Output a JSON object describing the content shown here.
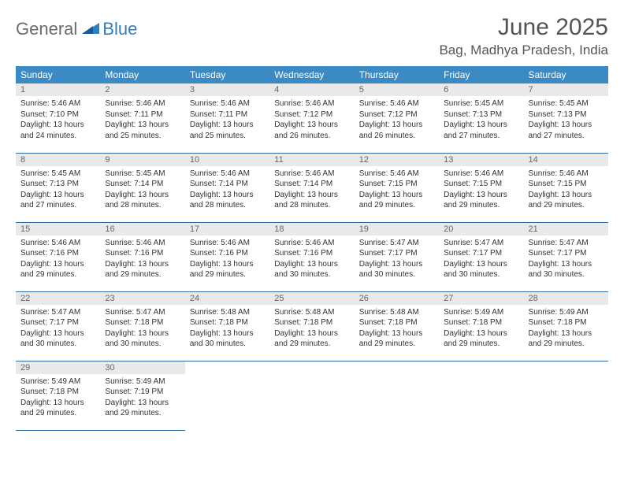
{
  "logo": {
    "text1": "General",
    "text2": "Blue"
  },
  "title": "June 2025",
  "location": "Bag, Madhya Pradesh, India",
  "colors": {
    "header_bg": "#3b8ac4",
    "header_text": "#ffffff",
    "daynum_bg": "#e9e9e9",
    "border": "#2f6b9e"
  },
  "weekdays": [
    "Sunday",
    "Monday",
    "Tuesday",
    "Wednesday",
    "Thursday",
    "Friday",
    "Saturday"
  ],
  "weeks": [
    [
      {
        "n": "1",
        "sr": "5:46 AM",
        "ss": "7:10 PM",
        "dl": "13 hours and 24 minutes."
      },
      {
        "n": "2",
        "sr": "5:46 AM",
        "ss": "7:11 PM",
        "dl": "13 hours and 25 minutes."
      },
      {
        "n": "3",
        "sr": "5:46 AM",
        "ss": "7:11 PM",
        "dl": "13 hours and 25 minutes."
      },
      {
        "n": "4",
        "sr": "5:46 AM",
        "ss": "7:12 PM",
        "dl": "13 hours and 26 minutes."
      },
      {
        "n": "5",
        "sr": "5:46 AM",
        "ss": "7:12 PM",
        "dl": "13 hours and 26 minutes."
      },
      {
        "n": "6",
        "sr": "5:45 AM",
        "ss": "7:13 PM",
        "dl": "13 hours and 27 minutes."
      },
      {
        "n": "7",
        "sr": "5:45 AM",
        "ss": "7:13 PM",
        "dl": "13 hours and 27 minutes."
      }
    ],
    [
      {
        "n": "8",
        "sr": "5:45 AM",
        "ss": "7:13 PM",
        "dl": "13 hours and 27 minutes."
      },
      {
        "n": "9",
        "sr": "5:45 AM",
        "ss": "7:14 PM",
        "dl": "13 hours and 28 minutes."
      },
      {
        "n": "10",
        "sr": "5:46 AM",
        "ss": "7:14 PM",
        "dl": "13 hours and 28 minutes."
      },
      {
        "n": "11",
        "sr": "5:46 AM",
        "ss": "7:14 PM",
        "dl": "13 hours and 28 minutes."
      },
      {
        "n": "12",
        "sr": "5:46 AM",
        "ss": "7:15 PM",
        "dl": "13 hours and 29 minutes."
      },
      {
        "n": "13",
        "sr": "5:46 AM",
        "ss": "7:15 PM",
        "dl": "13 hours and 29 minutes."
      },
      {
        "n": "14",
        "sr": "5:46 AM",
        "ss": "7:15 PM",
        "dl": "13 hours and 29 minutes."
      }
    ],
    [
      {
        "n": "15",
        "sr": "5:46 AM",
        "ss": "7:16 PM",
        "dl": "13 hours and 29 minutes."
      },
      {
        "n": "16",
        "sr": "5:46 AM",
        "ss": "7:16 PM",
        "dl": "13 hours and 29 minutes."
      },
      {
        "n": "17",
        "sr": "5:46 AM",
        "ss": "7:16 PM",
        "dl": "13 hours and 29 minutes."
      },
      {
        "n": "18",
        "sr": "5:46 AM",
        "ss": "7:16 PM",
        "dl": "13 hours and 30 minutes."
      },
      {
        "n": "19",
        "sr": "5:47 AM",
        "ss": "7:17 PM",
        "dl": "13 hours and 30 minutes."
      },
      {
        "n": "20",
        "sr": "5:47 AM",
        "ss": "7:17 PM",
        "dl": "13 hours and 30 minutes."
      },
      {
        "n": "21",
        "sr": "5:47 AM",
        "ss": "7:17 PM",
        "dl": "13 hours and 30 minutes."
      }
    ],
    [
      {
        "n": "22",
        "sr": "5:47 AM",
        "ss": "7:17 PM",
        "dl": "13 hours and 30 minutes."
      },
      {
        "n": "23",
        "sr": "5:47 AM",
        "ss": "7:18 PM",
        "dl": "13 hours and 30 minutes."
      },
      {
        "n": "24",
        "sr": "5:48 AM",
        "ss": "7:18 PM",
        "dl": "13 hours and 30 minutes."
      },
      {
        "n": "25",
        "sr": "5:48 AM",
        "ss": "7:18 PM",
        "dl": "13 hours and 29 minutes."
      },
      {
        "n": "26",
        "sr": "5:48 AM",
        "ss": "7:18 PM",
        "dl": "13 hours and 29 minutes."
      },
      {
        "n": "27",
        "sr": "5:49 AM",
        "ss": "7:18 PM",
        "dl": "13 hours and 29 minutes."
      },
      {
        "n": "28",
        "sr": "5:49 AM",
        "ss": "7:18 PM",
        "dl": "13 hours and 29 minutes."
      }
    ],
    [
      {
        "n": "29",
        "sr": "5:49 AM",
        "ss": "7:18 PM",
        "dl": "13 hours and 29 minutes."
      },
      {
        "n": "30",
        "sr": "5:49 AM",
        "ss": "7:19 PM",
        "dl": "13 hours and 29 minutes."
      },
      null,
      null,
      null,
      null,
      null
    ]
  ],
  "labels": {
    "sunrise": "Sunrise:",
    "sunset": "Sunset:",
    "daylight": "Daylight:"
  }
}
